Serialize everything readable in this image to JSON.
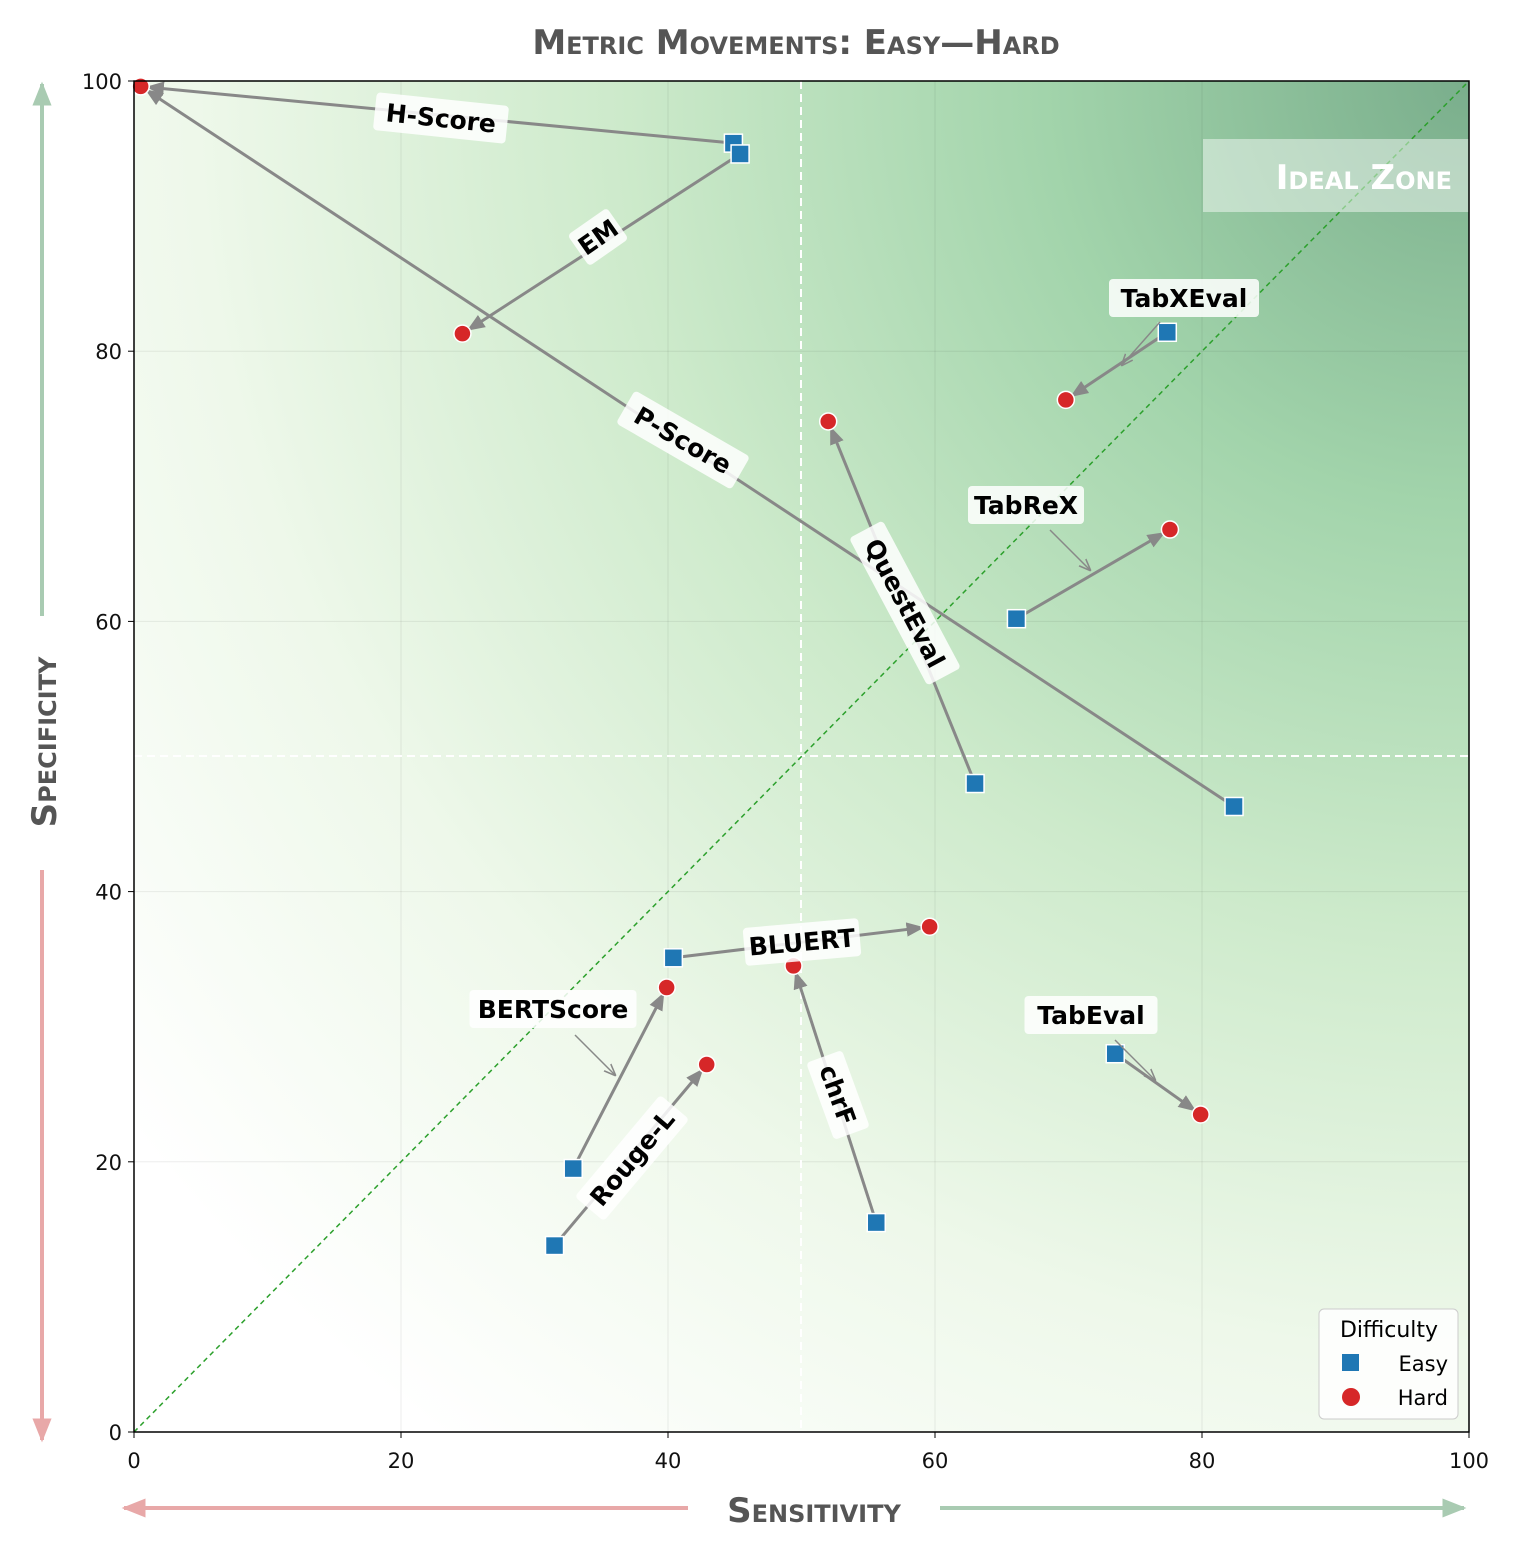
{
  "chart_data": {
    "type": "scatter",
    "title": "Metric Movements: Easy—Hard",
    "xlabel": "Sensitivity",
    "ylabel": "Specificity",
    "xlim": [
      0,
      100
    ],
    "ylim": [
      0,
      100
    ],
    "xticks": [
      "0",
      "20",
      "40",
      "60",
      "80",
      "100"
    ],
    "yticks": [
      "0",
      "20",
      "40",
      "60",
      "80",
      "100"
    ],
    "grid": true,
    "reference_lines": {
      "x": 50,
      "y": 50,
      "diagonal": "y = x"
    },
    "annotation": "Ideal Zone",
    "legend": {
      "title": "Difficulty",
      "placement": "bottom-right",
      "entries": [
        "Easy",
        "Hard"
      ]
    },
    "colors": {
      "Easy": "#1f77b4",
      "Hard": "#d62728",
      "diagonal": "#2ca02c",
      "arrow": "#888888"
    },
    "metrics": [
      {
        "name": "H-Score",
        "easy": [
          44.9,
          95.4
        ],
        "hard": [
          0.5,
          99.6
        ]
      },
      {
        "name": "EM",
        "easy": [
          45.4,
          94.6
        ],
        "hard": [
          24.6,
          81.3
        ]
      },
      {
        "name": "P-Score",
        "easy": [
          82.4,
          46.3
        ],
        "hard": [
          0.5,
          99.6
        ]
      },
      {
        "name": "TabXEval",
        "easy": [
          77.4,
          81.4
        ],
        "hard": [
          69.8,
          76.4
        ]
      },
      {
        "name": "QuestEval",
        "easy": [
          63.0,
          48.0
        ],
        "hard": [
          52.0,
          74.8
        ]
      },
      {
        "name": "TabReX",
        "easy": [
          66.1,
          60.2
        ],
        "hard": [
          77.6,
          66.8
        ]
      },
      {
        "name": "BLUERT",
        "easy": [
          40.4,
          35.1
        ],
        "hard": [
          59.6,
          37.4
        ]
      },
      {
        "name": "BERTScore",
        "easy": [
          32.9,
          19.5
        ],
        "hard": [
          39.9,
          32.9
        ]
      },
      {
        "name": "Rouge-L",
        "easy": [
          31.5,
          13.8
        ],
        "hard": [
          42.9,
          27.2
        ]
      },
      {
        "name": "chrF",
        "easy": [
          55.6,
          15.5
        ],
        "hard": [
          49.4,
          34.5
        ]
      },
      {
        "name": "TabEval",
        "easy": [
          73.5,
          28.0
        ],
        "hard": [
          79.9,
          23.5
        ]
      }
    ]
  }
}
